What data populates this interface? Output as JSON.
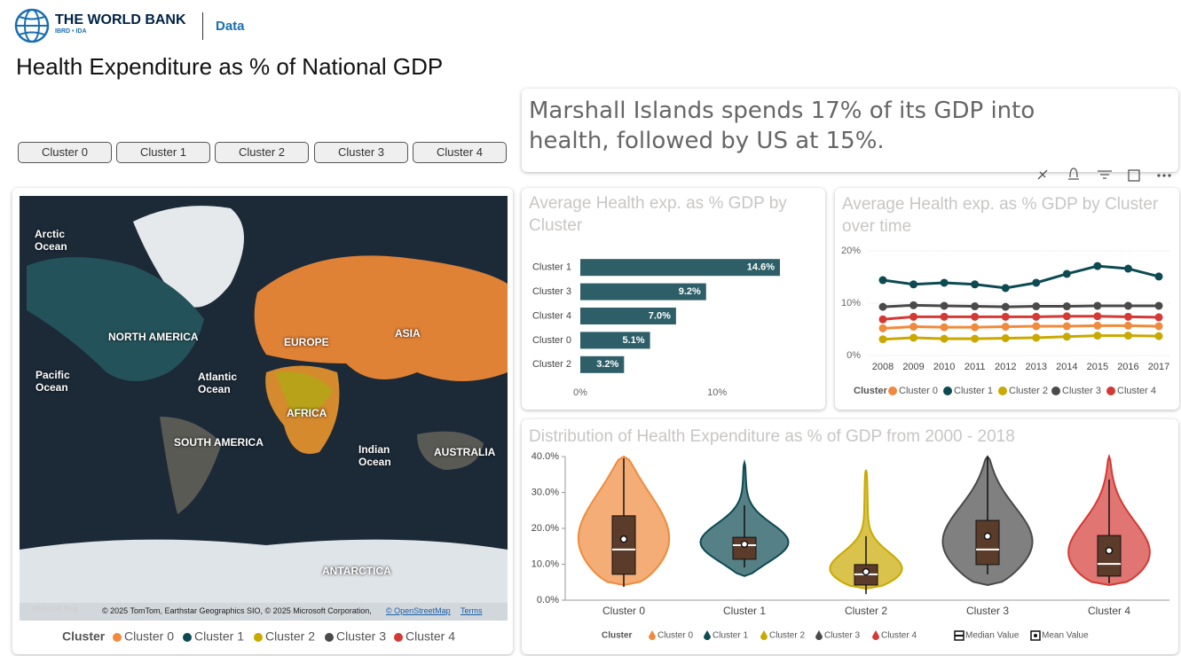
{
  "header": {
    "brand": "THE WORLD BANK",
    "sub": "IBRD • IDA",
    "section": "Data"
  },
  "title": "Health Expenditure as % of National GDP",
  "buttons": [
    "Cluster 0",
    "Cluster 1",
    "Cluster 2",
    "Cluster 3",
    "Cluster 4"
  ],
  "insight": "Marshall Islands spends 17% of its GDP into health, followed by US at 15%.",
  "map": {
    "labels": [
      "Arctic Ocean",
      "NORTH AMERICA",
      "EUROPE",
      "ASIA",
      "Pacific Ocean",
      "Atlantic Ocean",
      "AFRICA",
      "SOUTH AMERICA",
      "Indian Ocean",
      "AUSTRALIA",
      "ANTARCTICA"
    ],
    "bing": "Microsoft Bing",
    "attribution": "© 2025 TomTom, Earthstar Geographics SIO, © 2025 Microsoft Corporation,",
    "osm": "© OpenStreetMap",
    "terms": "Terms",
    "legend_title": "Cluster",
    "legend": [
      {
        "name": "Cluster 0",
        "color": "#f08a3c"
      },
      {
        "name": "Cluster 1",
        "color": "#0d4a52"
      },
      {
        "name": "Cluster 2",
        "color": "#c9a900"
      },
      {
        "name": "Cluster 3",
        "color": "#4a4a4a"
      },
      {
        "name": "Cluster 4",
        "color": "#d43a35"
      }
    ]
  },
  "chart_data": [
    {
      "type": "hbar",
      "title": "Average Health exp. as % GDP by Cluster",
      "categories": [
        "Cluster 1",
        "Cluster 3",
        "Cluster 4",
        "Cluster 0",
        "Cluster 2"
      ],
      "values": [
        14.6,
        9.2,
        7.0,
        5.1,
        3.2
      ],
      "value_labels": [
        "14.6%",
        "9.2%",
        "7.0%",
        "5.1%",
        "3.2%"
      ],
      "color": "#2e5f68",
      "xlim": [
        0,
        17
      ],
      "xticks": [
        {
          "value": 0,
          "label": "0%"
        },
        {
          "value": 10,
          "label": "10%"
        }
      ]
    },
    {
      "type": "line",
      "title": "Average Health exp. as % GDP by Cluster over time",
      "x": [
        2008,
        2009,
        2010,
        2011,
        2012,
        2013,
        2014,
        2015,
        2016,
        2017
      ],
      "xlim": [
        2008,
        2017
      ],
      "ylim": [
        0,
        20
      ],
      "yticks": [
        {
          "value": 0,
          "label": "0%"
        },
        {
          "value": 10,
          "label": "10%"
        },
        {
          "value": 20,
          "label": "20%"
        }
      ],
      "grid": true,
      "legend_title": "Cluster",
      "series": [
        {
          "name": "Cluster 0",
          "color": "#f08a3c",
          "values": [
            5.2,
            5.5,
            5.4,
            5.4,
            5.5,
            5.6,
            5.6,
            5.7,
            5.7,
            5.6
          ]
        },
        {
          "name": "Cluster 1",
          "color": "#0d4a52",
          "values": [
            14.4,
            13.6,
            13.9,
            13.6,
            12.9,
            13.9,
            15.6,
            17.1,
            16.6,
            15.1
          ]
        },
        {
          "name": "Cluster 2",
          "color": "#c9a900",
          "values": [
            3.1,
            3.4,
            3.2,
            3.2,
            3.3,
            3.4,
            3.6,
            3.8,
            3.8,
            3.7
          ]
        },
        {
          "name": "Cluster 3",
          "color": "#4a4a4a",
          "values": [
            9.3,
            9.6,
            9.5,
            9.4,
            9.3,
            9.4,
            9.4,
            9.5,
            9.5,
            9.5
          ]
        },
        {
          "name": "Cluster 4",
          "color": "#d43a35",
          "values": [
            6.9,
            7.4,
            7.4,
            7.4,
            7.4,
            7.4,
            7.5,
            7.5,
            7.4,
            7.3
          ]
        }
      ]
    },
    {
      "type": "violin",
      "title": "Distribution of Health Expenditure as % of GDP from 2000 - 2018",
      "ylim": [
        0,
        40
      ],
      "yticks": [
        {
          "value": 0,
          "label": "0.0%"
        },
        {
          "value": 10,
          "label": "10.0%"
        },
        {
          "value": 20,
          "label": "20.0%"
        },
        {
          "value": 30,
          "label": "30.0%"
        },
        {
          "value": 40,
          "label": "40.0%"
        }
      ],
      "legend_title": "Cluster",
      "median_label": "Median Value",
      "mean_label": "Mean Value",
      "series": [
        {
          "name": "Cluster 0",
          "color": "#f08a3c",
          "min": 4.2,
          "max": 40,
          "whisker_low": 3.7,
          "q1": 7.2,
          "median": 14.1,
          "q3": 23.5,
          "whisker_high": 39.5,
          "mean": 17.0
        },
        {
          "name": "Cluster 1",
          "color": "#0d4a52",
          "min": 6.7,
          "max": 38.3,
          "whisker_low": 9.1,
          "q1": 11.4,
          "median": 15.3,
          "q3": 17.5,
          "whisker_high": 26.4,
          "mean": 15.6
        },
        {
          "name": "Cluster 2",
          "color": "#c9a900",
          "min": 3.2,
          "max": 36.3,
          "whisker_low": 1.7,
          "q1": 4.2,
          "median": 7.2,
          "q3": 9.9,
          "whisker_high": 17.8,
          "mean": 7.9
        },
        {
          "name": "Cluster 3",
          "color": "#4a4a4a",
          "min": 4.2,
          "max": 40,
          "whisker_low": 7.2,
          "q1": 9.9,
          "median": 14.1,
          "q3": 22.2,
          "whisker_high": 40,
          "mean": 17.8
        },
        {
          "name": "Cluster 4",
          "color": "#d43a35",
          "min": 4.2,
          "max": 40,
          "whisker_low": 4.7,
          "q1": 6.7,
          "median": 10.1,
          "q3": 18.0,
          "whisker_high": 33.6,
          "mean": 13.8
        }
      ]
    }
  ]
}
